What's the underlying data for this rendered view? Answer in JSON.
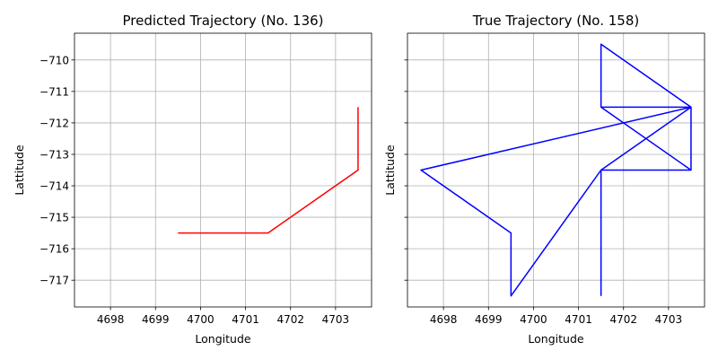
{
  "colors": {
    "background": "#ffffff",
    "grid": "#b0b0b0",
    "axes": "#000000"
  },
  "chart_data": [
    {
      "type": "line",
      "title": "Predicted Trajectory (No. 136)",
      "xlabel": "Longitude",
      "ylabel": "Lattitude",
      "xlim": [
        4697.2,
        4703.8
      ],
      "ylim": [
        -717.85,
        -709.15
      ],
      "xticks": [
        4698,
        4699,
        4700,
        4701,
        4702,
        4703
      ],
      "yticks": [
        -710,
        -711,
        -712,
        -713,
        -714,
        -715,
        -716,
        -717
      ],
      "grid": true,
      "series": [
        {
          "color": "#ff0000",
          "x": [
            4699.5,
            4701.5,
            4703.5,
            4703.5
          ],
          "y": [
            -715.5,
            -715.5,
            -713.5,
            -711.5
          ]
        }
      ]
    },
    {
      "type": "line",
      "title": "True Trajectory (No. 158)",
      "xlabel": "Longitude",
      "ylabel": "Lattitude",
      "xlim": [
        4697.2,
        4703.8
      ],
      "ylim": [
        -717.85,
        -709.15
      ],
      "xticks": [
        4698,
        4699,
        4700,
        4701,
        4702,
        4703
      ],
      "yticks": [
        -710,
        -711,
        -712,
        -713,
        -714,
        -715,
        -716,
        -717
      ],
      "grid": true,
      "series": [
        {
          "color": "#0000ff",
          "x": [
            4701.5,
            4701.5,
            4699.5,
            4699.5,
            4697.5,
            4703.5,
            4701.5,
            4703.5,
            4703.5,
            4701.5,
            4703.5,
            4701.5,
            4701.5,
            4703.5,
            4701.5
          ],
          "y": [
            -717.5,
            -713.5,
            -717.5,
            -715.5,
            -713.5,
            -711.5,
            -711.5,
            -713.5,
            -711.5,
            -713.5,
            -713.5,
            -711.5,
            -709.5,
            -711.5,
            -713.5
          ]
        }
      ]
    }
  ]
}
